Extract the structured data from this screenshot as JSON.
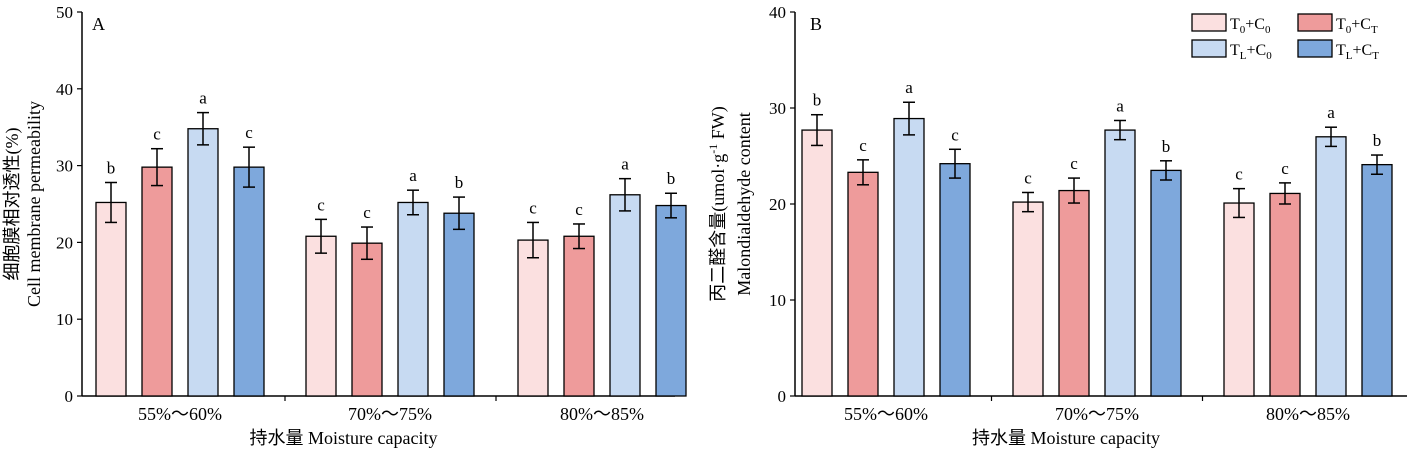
{
  "chart_data": [
    {
      "type": "bar",
      "panel_label": "A",
      "ylabel_cn": "细胞膜相对透性(%)",
      "ylabel_en": "Cell membrane permeability",
      "xlabel": "持水量 Moisture capacity",
      "ylim": [
        0,
        50
      ],
      "yticks": [
        "0",
        "10",
        "20",
        "30",
        "40",
        "50"
      ],
      "categories": [
        "55%～60%",
        "70%～75%",
        "80%～85%"
      ],
      "series": [
        {
          "name": "T0+C0",
          "values": [
            25.2,
            20.8,
            20.3
          ],
          "errors": [
            2.6,
            2.2,
            2.3
          ],
          "letters": [
            "b",
            "c",
            "c"
          ]
        },
        {
          "name": "T0+CT",
          "values": [
            29.8,
            19.9,
            20.8
          ],
          "errors": [
            2.4,
            2.1,
            1.6
          ],
          "letters": [
            "c",
            "c",
            "c"
          ]
        },
        {
          "name": "TL+C0",
          "values": [
            34.8,
            25.2,
            26.2
          ],
          "errors": [
            2.1,
            1.6,
            2.1
          ],
          "letters": [
            "a",
            "a",
            "a"
          ]
        },
        {
          "name": "TL+CT",
          "values": [
            29.8,
            23.8,
            24.8
          ],
          "errors": [
            2.6,
            2.1,
            1.6
          ],
          "letters": [
            "c",
            "b",
            "b"
          ]
        }
      ]
    },
    {
      "type": "bar",
      "panel_label": "B",
      "ylabel_cn": "丙二醛含量(umol·g",
      "ylabel_sup": "-1",
      "ylabel_cn_tail": " FW)",
      "ylabel_en": "Malondialdehyde content",
      "xlabel": "持水量 Moisture capacity",
      "ylim": [
        0,
        40
      ],
      "yticks": [
        "0",
        "10",
        "20",
        "30",
        "40"
      ],
      "categories": [
        "55%～60%",
        "70%～75%",
        "80%～85%"
      ],
      "series": [
        {
          "name": "T0+C0",
          "values": [
            27.7,
            20.2,
            20.1
          ],
          "errors": [
            1.6,
            1.0,
            1.5
          ],
          "letters": [
            "b",
            "c",
            "c"
          ]
        },
        {
          "name": "T0+CT",
          "values": [
            23.3,
            21.4,
            21.1
          ],
          "errors": [
            1.3,
            1.3,
            1.1
          ],
          "letters": [
            "c",
            "c",
            "c"
          ]
        },
        {
          "name": "TL+C0",
          "values": [
            28.9,
            27.7,
            27.0
          ],
          "errors": [
            1.7,
            1.0,
            1.0
          ],
          "letters": [
            "a",
            "a",
            "a"
          ]
        },
        {
          "name": "TL+CT",
          "values": [
            24.2,
            23.5,
            24.1
          ],
          "errors": [
            1.5,
            1.0,
            1.0
          ],
          "letters": [
            "c",
            "b",
            "b"
          ]
        }
      ],
      "legend": {
        "placement": "top-right",
        "items": [
          {
            "base": "T",
            "sub1": "0",
            "mid": "+C",
            "sub2": "0",
            "series": 0
          },
          {
            "base": "T",
            "sub1": "0",
            "mid": "+C",
            "sub2": "T",
            "series": 1
          },
          {
            "base": "T",
            "sub1": "L",
            "mid": "+C",
            "sub2": "0",
            "series": 2
          },
          {
            "base": "T",
            "sub1": "L",
            "mid": "+C",
            "sub2": "T",
            "series": 3
          }
        ]
      }
    }
  ],
  "colors": {
    "series": [
      "#fbe0e0",
      "#ee9b9b",
      "#c7daf2",
      "#7ea8dc"
    ],
    "axis": "#000000"
  }
}
